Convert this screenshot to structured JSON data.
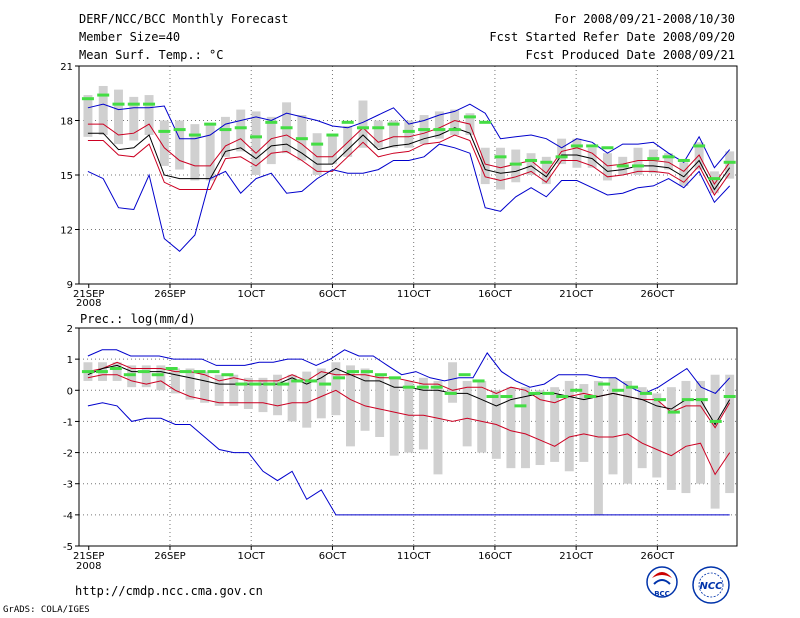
{
  "header": {
    "title": "DERF/NCC/BCC Monthly Forecast",
    "member_size": "Member Size=40",
    "variable": "Mean Surf. Temp.: °C",
    "period": "For 2008/09/21-2008/10/30",
    "fcst_started": "Fcst Started Refer Date 2008/09/20",
    "fcst_produced": "Fcst Produced Date 2008/09/21"
  },
  "footer": {
    "url": "http://cmdp.ncc.cma.gov.cn",
    "grads": "GrADS: COLA/IGES",
    "logo_bcc": "BCC",
    "logo_ncc": "NCC"
  },
  "colors": {
    "box": "#d0d0d0",
    "member": "#44dd44",
    "mean": "#000000",
    "inner": "#cc0022",
    "outer": "#0000cc",
    "grid": "#777777"
  },
  "chart_data": [
    {
      "type": "line",
      "title": "Mean Surf. Temp.: °C",
      "x_tick_labels": [
        "21SEP",
        "26SEP",
        "1OCT",
        "6OCT",
        "11OCT",
        "16OCT",
        "21OCT",
        "26OCT"
      ],
      "x_sub_label": "2008",
      "y_ticks": [
        "9",
        "12",
        "15",
        "18",
        "21"
      ],
      "ylim": [
        9,
        21
      ],
      "days": 40,
      "series": [
        {
          "name": "max",
          "role": "outer",
          "values": [
            18.7,
            18.9,
            18.6,
            18.7,
            18.7,
            18.8,
            17.0,
            17.0,
            17.2,
            17.8,
            18.0,
            18.2,
            18.0,
            18.4,
            18.2,
            18.0,
            17.7,
            17.6,
            17.9,
            18.3,
            18.7,
            17.8,
            18.0,
            18.3,
            18.5,
            18.9,
            18.4,
            17.0,
            17.1,
            17.2,
            17.0,
            16.5,
            17.0,
            16.8,
            16.2,
            16.7,
            16.7,
            16.8,
            16.2,
            15.7,
            17.1,
            15.4,
            16.4
          ]
        },
        {
          "name": "p90",
          "role": "inner",
          "values": [
            17.8,
            17.8,
            17.2,
            17.3,
            17.8,
            16.5,
            15.8,
            15.5,
            15.5,
            16.6,
            17.0,
            16.2,
            17.0,
            17.2,
            16.7,
            16.0,
            16.0,
            16.8,
            17.6,
            16.8,
            17.1,
            17.1,
            17.3,
            17.6,
            18.0,
            17.8,
            15.6,
            15.4,
            15.6,
            15.8,
            15.1,
            16.3,
            16.5,
            16.2,
            15.5,
            15.6,
            15.8,
            15.8,
            15.7,
            15.2,
            16.1,
            14.5,
            15.7
          ]
        },
        {
          "name": "mean",
          "role": "mean",
          "values": [
            17.3,
            17.3,
            16.4,
            16.5,
            17.2,
            15.0,
            14.8,
            14.8,
            14.8,
            16.3,
            16.5,
            15.9,
            16.6,
            16.7,
            16.2,
            15.6,
            15.6,
            16.4,
            17.2,
            16.4,
            16.6,
            16.7,
            17.0,
            17.2,
            17.6,
            17.3,
            15.3,
            15.1,
            15.2,
            15.5,
            14.9,
            16.1,
            16.1,
            15.9,
            15.2,
            15.3,
            15.5,
            15.5,
            15.4,
            14.9,
            15.8,
            14.2,
            15.4
          ]
        },
        {
          "name": "p10",
          "role": "inner",
          "values": [
            16.9,
            16.9,
            16.1,
            16.0,
            16.7,
            14.6,
            14.2,
            14.2,
            14.2,
            15.9,
            16.0,
            15.5,
            16.2,
            16.3,
            15.8,
            15.2,
            15.2,
            16.0,
            16.8,
            16.0,
            16.2,
            16.3,
            16.7,
            16.8,
            17.2,
            16.9,
            14.9,
            14.7,
            14.9,
            15.2,
            14.6,
            15.8,
            15.8,
            15.5,
            14.9,
            15.0,
            15.2,
            15.2,
            15.1,
            14.6,
            15.5,
            13.9,
            15.1
          ]
        },
        {
          "name": "min",
          "role": "outer",
          "values": [
            15.2,
            14.8,
            13.2,
            13.1,
            15.0,
            11.5,
            10.8,
            11.7,
            14.8,
            15.2,
            14.0,
            14.8,
            15.1,
            14.0,
            14.1,
            14.8,
            15.3,
            15.1,
            15.1,
            15.3,
            15.8,
            15.8,
            16.0,
            16.7,
            16.5,
            16.2,
            13.2,
            13.0,
            13.8,
            14.3,
            13.8,
            14.7,
            14.7,
            14.3,
            13.9,
            14.0,
            14.3,
            14.4,
            14.8,
            14.3,
            15.2,
            13.5,
            14.4
          ]
        }
      ],
      "boxes": [
        [
          17.1,
          19.4
        ],
        [
          17.2,
          19.9
        ],
        [
          16.7,
          19.7
        ],
        [
          16.9,
          19.3
        ],
        [
          17.2,
          19.4
        ],
        [
          15.5,
          18.0
        ],
        [
          15.3,
          18.0
        ],
        [
          14.7,
          17.8
        ],
        [
          14.7,
          17.8
        ],
        [
          16.0,
          18.2
        ],
        [
          16.3,
          18.6
        ],
        [
          15.0,
          18.5
        ],
        [
          15.6,
          18.2
        ],
        [
          16.2,
          19.0
        ],
        [
          15.8,
          18.3
        ],
        [
          15.0,
          17.3
        ],
        [
          15.6,
          17.2
        ],
        [
          16.0,
          17.7
        ],
        [
          16.5,
          19.1
        ],
        [
          16.5,
          18.0
        ],
        [
          16.5,
          18.0
        ],
        [
          16.5,
          18.0
        ],
        [
          16.7,
          18.3
        ],
        [
          17.0,
          18.5
        ],
        [
          17.2,
          18.6
        ],
        [
          17.2,
          18.4
        ],
        [
          14.5,
          16.5
        ],
        [
          14.2,
          16.5
        ],
        [
          14.6,
          16.4
        ],
        [
          15.0,
          16.2
        ],
        [
          14.5,
          16.0
        ],
        [
          15.6,
          17.0
        ],
        [
          15.4,
          17.0
        ],
        [
          15.4,
          16.5
        ],
        [
          14.7,
          16.2
        ],
        [
          15.0,
          16.0
        ],
        [
          15.0,
          16.5
        ],
        [
          15.1,
          16.4
        ],
        [
          15.3,
          16.2
        ],
        [
          14.4,
          15.7
        ],
        [
          15.3,
          16.8
        ],
        [
          14.0,
          15.2
        ],
        [
          14.8,
          16.3
        ]
      ],
      "members": [
        19.2,
        19.4,
        18.9,
        18.9,
        18.9,
        17.4,
        17.5,
        17.2,
        17.8,
        17.5,
        17.6,
        17.1,
        17.9,
        17.6,
        17.0,
        16.7,
        17.2,
        17.9,
        17.6,
        17.6,
        17.8,
        17.4,
        17.5,
        17.5,
        17.5,
        18.2,
        17.9,
        16.0,
        15.6,
        15.8,
        15.7,
        16.0,
        16.6,
        16.6,
        16.5,
        15.5,
        15.5,
        15.9,
        16.0,
        15.8,
        16.6,
        14.8,
        15.7
      ]
    },
    {
      "type": "line",
      "title": "Prec.: log(mm/d)",
      "x_tick_labels": [
        "21SEP",
        "26SEP",
        "1OCT",
        "6OCT",
        "11OCT",
        "16OCT",
        "21OCT",
        "26OCT"
      ],
      "x_sub_label": "2008",
      "y_ticks": [
        "-5",
        "-4",
        "-3",
        "-2",
        "-1",
        "0",
        "1",
        "2"
      ],
      "ylim": [
        -5,
        2
      ],
      "days": 40,
      "series": [
        {
          "name": "max",
          "role": "outer",
          "values": [
            1.1,
            1.3,
            1.3,
            1.1,
            1.1,
            1.1,
            1.0,
            1.0,
            1.0,
            0.8,
            0.8,
            0.8,
            0.9,
            0.9,
            1.0,
            1.0,
            0.8,
            1.0,
            1.3,
            1.1,
            1.1,
            0.8,
            0.5,
            0.6,
            0.4,
            0.3,
            0.4,
            0.4,
            1.2,
            0.6,
            0.3,
            0.1,
            0.2,
            0.5,
            0.5,
            0.5,
            0.4,
            0.4,
            0.1,
            -0.1,
            0.1,
            0.4,
            0.7,
            0.1,
            -0.1,
            0.4
          ]
        },
        {
          "name": "p90",
          "role": "inner",
          "values": [
            0.6,
            0.7,
            0.9,
            0.7,
            0.7,
            0.7,
            0.6,
            0.6,
            0.5,
            0.3,
            0.4,
            0.3,
            0.3,
            0.3,
            0.5,
            0.3,
            0.6,
            0.5,
            0.5,
            0.5,
            0.4,
            0.4,
            0.3,
            0.2,
            0.2,
            0.0,
            0.1,
            0.1,
            -0.1,
            0.1,
            0.0,
            -0.3,
            -0.4,
            -0.2,
            -0.1,
            -0.2,
            -0.1,
            -0.2,
            -0.3,
            -0.3,
            -0.7,
            -0.5,
            -0.5,
            -1.2,
            -0.4
          ]
        },
        {
          "name": "mean",
          "role": "mean",
          "values": [
            0.5,
            0.7,
            0.8,
            0.6,
            0.6,
            0.6,
            0.5,
            0.4,
            0.3,
            0.2,
            0.2,
            0.2,
            0.2,
            0.2,
            0.4,
            0.2,
            0.4,
            0.7,
            0.5,
            0.3,
            0.3,
            0.1,
            0.1,
            0.0,
            0.0,
            -0.1,
            -0.1,
            -0.3,
            -0.5,
            -0.3,
            -0.2,
            -0.1,
            -0.1,
            -0.2,
            -0.3,
            -0.2,
            -0.1,
            -0.2,
            -0.3,
            -0.5,
            -0.6,
            -0.3,
            -0.3,
            -1.1,
            -0.3
          ]
        },
        {
          "name": "p10",
          "role": "inner",
          "values": [
            0.4,
            0.5,
            0.5,
            0.3,
            0.2,
            0.3,
            0.0,
            -0.2,
            -0.3,
            -0.4,
            -0.4,
            -0.4,
            -0.4,
            -0.5,
            -0.4,
            -0.4,
            -0.2,
            0.0,
            -0.3,
            -0.5,
            -0.6,
            -0.7,
            -0.8,
            -0.8,
            -0.9,
            -1.0,
            -0.9,
            -1.0,
            -1.1,
            -1.3,
            -1.4,
            -1.6,
            -1.8,
            -1.5,
            -1.4,
            -1.5,
            -1.5,
            -1.4,
            -1.7,
            -1.9,
            -2.1,
            -1.8,
            -1.7,
            -2.7,
            -2.0
          ]
        },
        {
          "name": "min",
          "role": "outer",
          "values": [
            -0.5,
            -0.4,
            -0.5,
            -1.0,
            -0.9,
            -0.9,
            -1.1,
            -1.1,
            -1.5,
            -1.9,
            -2.0,
            -2.0,
            -2.6,
            -2.9,
            -2.6,
            -3.5,
            -3.2,
            -4.0,
            -4.0,
            -4.0,
            -4.0,
            -4.0,
            -4.0,
            -4.0,
            -4.0,
            -4.0,
            -4.0,
            -4.0,
            -4.0,
            -4.0,
            -4.0,
            -4.0,
            -4.0,
            -4.0,
            -4.0,
            -4.0,
            -4.0,
            -4.0,
            -4.0,
            -4.0,
            -4.0,
            -4.0,
            -4.0,
            -4.0,
            -4.0
          ]
        }
      ],
      "boxes": [
        [
          0.3,
          0.9
        ],
        [
          0.3,
          0.9
        ],
        [
          0.3,
          0.9
        ],
        [
          0.1,
          0.8
        ],
        [
          0.1,
          0.8
        ],
        [
          0.0,
          0.8
        ],
        [
          -0.1,
          0.7
        ],
        [
          -0.3,
          0.7
        ],
        [
          -0.4,
          0.6
        ],
        [
          -0.5,
          0.5
        ],
        [
          -0.5,
          0.5
        ],
        [
          -0.6,
          0.4
        ],
        [
          -0.7,
          0.4
        ],
        [
          -0.8,
          0.5
        ],
        [
          -1.0,
          0.5
        ],
        [
          -1.2,
          0.6
        ],
        [
          -0.9,
          0.7
        ],
        [
          -0.8,
          0.9
        ],
        [
          -1.8,
          0.8
        ],
        [
          -1.3,
          0.7
        ],
        [
          -1.5,
          0.5
        ],
        [
          -2.1,
          0.4
        ],
        [
          -2.0,
          0.3
        ],
        [
          -1.9,
          0.4
        ],
        [
          -2.7,
          0.3
        ],
        [
          -0.4,
          0.9
        ],
        [
          -1.8,
          0.3
        ],
        [
          -2.0,
          0.3
        ],
        [
          -2.2,
          0.0
        ],
        [
          -2.5,
          0.1
        ],
        [
          -2.5,
          0.1
        ],
        [
          -2.4,
          0.0
        ],
        [
          -2.3,
          0.1
        ],
        [
          -2.6,
          0.3
        ],
        [
          -2.3,
          0.2
        ],
        [
          -4.0,
          0.3
        ],
        [
          -2.7,
          0.4
        ],
        [
          -3.0,
          0.3
        ],
        [
          -2.5,
          0.1
        ],
        [
          -2.8,
          -0.1
        ],
        [
          -3.2,
          0.1
        ],
        [
          -3.3,
          0.3
        ],
        [
          -3.0,
          0.3
        ],
        [
          -3.8,
          0.5
        ],
        [
          -3.3,
          0.5
        ]
      ],
      "members": [
        0.6,
        0.6,
        0.7,
        0.5,
        0.6,
        0.5,
        0.7,
        0.6,
        0.6,
        0.6,
        0.5,
        0.2,
        0.2,
        0.2,
        0.2,
        0.3,
        0.3,
        0.2,
        0.4,
        0.6,
        0.6,
        0.5,
        0.4,
        0.1,
        0.1,
        0.1,
        -0.1,
        0.5,
        0.3,
        -0.2,
        -0.2,
        -0.5,
        -0.1,
        -0.1,
        -0.2,
        0.0,
        -0.2,
        0.2,
        0.0,
        0.1,
        -0.1,
        -0.3,
        -0.7,
        -0.3,
        -0.3,
        -1.0,
        -0.2
      ]
    }
  ]
}
